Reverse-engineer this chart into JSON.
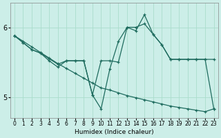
{
  "xlabel": "Humidex (Indice chaleur)",
  "background_color": "#cceee8",
  "grid_color": "#aaddcc",
  "line_color": "#1e6b5e",
  "xlim": [
    -0.5,
    23.5
  ],
  "ylim": [
    4.7,
    6.35
  ],
  "yticks": [
    5,
    6
  ],
  "xticks": [
    0,
    1,
    2,
    3,
    4,
    5,
    6,
    7,
    8,
    9,
    10,
    11,
    12,
    13,
    14,
    15,
    16,
    17,
    18,
    19,
    20,
    21,
    22,
    23
  ],
  "line1_x": [
    0,
    1,
    2,
    3,
    4,
    5,
    6,
    7,
    8,
    9,
    10,
    11,
    12,
    13,
    14,
    15,
    16,
    17,
    18,
    19,
    20,
    21,
    22,
    23
  ],
  "line1_y": [
    5.88,
    5.8,
    5.72,
    5.64,
    5.56,
    5.48,
    5.41,
    5.34,
    5.27,
    5.2,
    5.13,
    5.1,
    5.06,
    5.02,
    4.99,
    4.96,
    4.93,
    4.9,
    4.87,
    4.85,
    4.83,
    4.81,
    4.79,
    4.83
  ],
  "line2_x": [
    0,
    1,
    2,
    3,
    4,
    5,
    6,
    7,
    8,
    9,
    10,
    11,
    12,
    13,
    14,
    15,
    16,
    17,
    18,
    19,
    20,
    21,
    22,
    23
  ],
  "line2_y": [
    5.88,
    5.78,
    5.68,
    5.63,
    5.55,
    5.47,
    5.52,
    5.52,
    5.52,
    5.03,
    5.52,
    5.52,
    5.5,
    6.0,
    6.0,
    6.05,
    5.9,
    5.75,
    5.54,
    5.54,
    5.54,
    5.54,
    5.54,
    5.54
  ],
  "line3_x": [
    0,
    1,
    2,
    3,
    4,
    5,
    6,
    7,
    8,
    9,
    10,
    11,
    12,
    13,
    14,
    15,
    16,
    17,
    18,
    19,
    20,
    21,
    22,
    23
  ],
  "line3_y": [
    5.88,
    5.78,
    5.68,
    5.63,
    5.52,
    5.43,
    5.52,
    5.52,
    5.52,
    5.03,
    4.83,
    5.4,
    5.8,
    6.0,
    5.95,
    6.18,
    5.9,
    5.75,
    5.54,
    5.54,
    5.54,
    5.54,
    5.54,
    4.83
  ]
}
